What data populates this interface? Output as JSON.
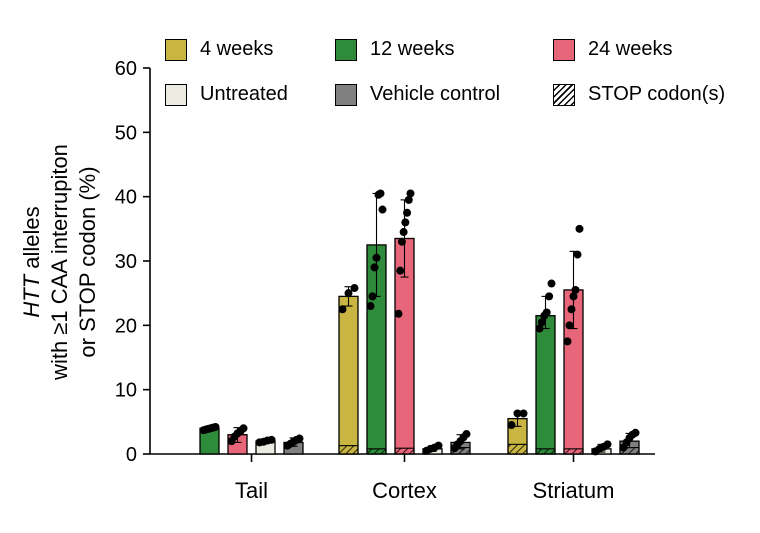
{
  "chart_data": {
    "type": "bar",
    "ylabel": {
      "line1_italic": "HTT",
      "line1_rest": " alleles",
      "line2": "with ≥1 CAA interrupiton",
      "line3": "or STOP codon (%)"
    },
    "ylim": [
      0,
      60
    ],
    "yticks": [
      "0",
      "10",
      "20",
      "30",
      "40",
      "50",
      "60"
    ],
    "categories": [
      "Tail",
      "Cortex",
      "Striatum"
    ],
    "legend": [
      {
        "name": "4 weeks",
        "color": "#c9b542",
        "pattern": "solid"
      },
      {
        "name": "12 weeks",
        "color": "#2e8b3a",
        "pattern": "solid"
      },
      {
        "name": "24 weeks",
        "color": "#e8667a",
        "pattern": "solid"
      },
      {
        "name": "Untreated",
        "color": "#ecebe2",
        "pattern": "solid"
      },
      {
        "name": "Vehicle control",
        "color": "#808080",
        "pattern": "solid"
      },
      {
        "name": "STOP codon(s)",
        "color": "#ffffff",
        "pattern": "hatch"
      }
    ],
    "groups": [
      {
        "category": "Tail",
        "bars": [
          {
            "series": "12 weeks",
            "value": 4.0,
            "stop": 0,
            "error": [
              3.6,
              4.3
            ],
            "points": [
              3.7,
              3.8,
              3.9,
              4.0,
              4.1,
              4.2
            ]
          },
          {
            "series": "24 weeks",
            "value": 3.0,
            "stop": 0,
            "error": [
              1.8,
              4.1
            ],
            "points": [
              2.0,
              2.7,
              3.2,
              3.5,
              4.0
            ]
          },
          {
            "series": "Untreated",
            "value": 2.0,
            "stop": 0,
            "error": [
              1.7,
              2.3
            ],
            "points": [
              1.8,
              1.9,
              2.1,
              2.2
            ]
          },
          {
            "series": "Vehicle control",
            "value": 1.8,
            "stop": 0,
            "error": [
              1.2,
              2.5
            ],
            "points": [
              1.3,
              1.6,
              1.9,
              2.2,
              2.4
            ]
          }
        ]
      },
      {
        "category": "Cortex",
        "bars": [
          {
            "series": "4 weeks",
            "value": 24.5,
            "stop": 1.3,
            "error": [
              23.0,
              26.0
            ],
            "points": [
              22.5,
              25.0,
              25.8
            ]
          },
          {
            "series": "12 weeks",
            "value": 32.5,
            "stop": 0.8,
            "error": [
              24.5,
              40.5
            ],
            "points": [
              23.0,
              24.5,
              29.0,
              30.5,
              40.3,
              40.5,
              38.0
            ]
          },
          {
            "series": "24 weeks",
            "value": 33.5,
            "stop": 0.9,
            "error": [
              27.5,
              39.5
            ],
            "points": [
              21.8,
              28.5,
              33.0,
              34.5,
              36.0,
              37.5,
              39.5,
              40.5
            ]
          },
          {
            "series": "Untreated",
            "value": 0.8,
            "stop": 0,
            "error": [
              0.4,
              1.3
            ],
            "points": [
              0.5,
              0.8,
              1.0,
              1.3
            ]
          },
          {
            "series": "Vehicle control",
            "value": 1.8,
            "stop": 1.0,
            "error": [
              0.8,
              3.0
            ],
            "points": [
              0.9,
              1.5,
              2.0,
              2.6,
              3.1
            ]
          }
        ]
      },
      {
        "category": "Striatum",
        "bars": [
          {
            "series": "4 weeks",
            "value": 5.5,
            "stop": 1.5,
            "error": [
              4.3,
              6.5
            ],
            "points": [
              4.5,
              6.3,
              6.3
            ]
          },
          {
            "series": "12 weeks",
            "value": 21.5,
            "stop": 0.8,
            "error": [
              19.5,
              24.5
            ],
            "points": [
              19.5,
              20.5,
              21.5,
              22.0,
              24.5,
              26.5
            ]
          },
          {
            "series": "24 weeks",
            "value": 25.5,
            "stop": 0.8,
            "error": [
              19.5,
              31.5
            ],
            "points": [
              17.5,
              20.0,
              22.5,
              24.5,
              25.5,
              31.0,
              35.0
            ]
          },
          {
            "series": "Untreated",
            "value": 0.8,
            "stop": 0,
            "error": [
              0.3,
              1.5
            ],
            "points": [
              0.4,
              0.8,
              1.1,
              1.5
            ]
          },
          {
            "series": "Vehicle control",
            "value": 2.0,
            "stop": 1.0,
            "error": [
              1.0,
              3.2
            ],
            "points": [
              1.0,
              1.8,
              2.5,
              3.0,
              3.3
            ]
          }
        ]
      }
    ]
  }
}
